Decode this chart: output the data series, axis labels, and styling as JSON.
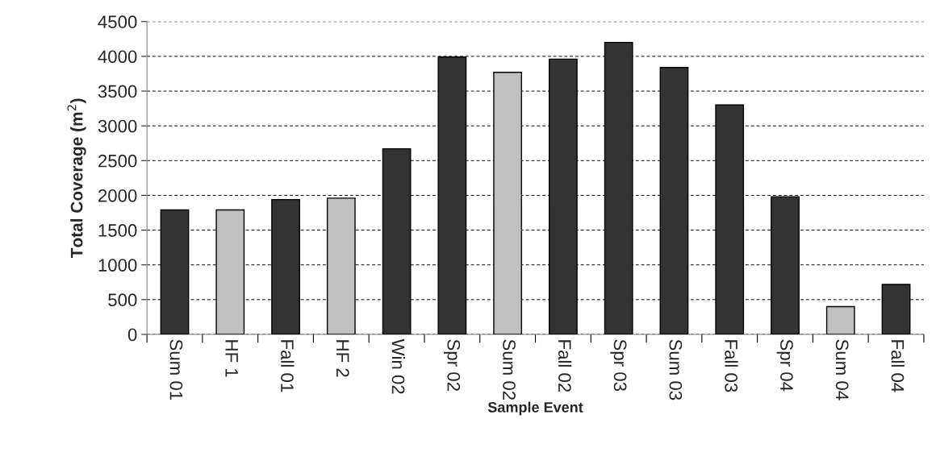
{
  "chart_data": {
    "type": "bar",
    "xlabel": "Sample Event",
    "ylabel": "Total Coverage (m$^{2}$)",
    "categories": [
      "Sum 01",
      "HF 1",
      "Fall 01",
      "HF 2",
      "Win 02",
      "Spr 02",
      "Sum 02",
      "Fall 02",
      "Spr 03",
      "Sum 03",
      "Fall 03",
      "Spr 04",
      "Sum 04",
      "Fall 04"
    ],
    "values": [
      1790,
      1790,
      1940,
      1960,
      2670,
      3990,
      3770,
      3960,
      4200,
      3840,
      3300,
      1980,
      400,
      720
    ],
    "colors": [
      "#333333",
      "#c0c0c0",
      "#333333",
      "#c0c0c0",
      "#333333",
      "#333333",
      "#c0c0c0",
      "#333333",
      "#333333",
      "#333333",
      "#333333",
      "#333333",
      "#c0c0c0",
      "#333333"
    ],
    "ylim": [
      0,
      4500
    ],
    "yticks": [
      0,
      500,
      1000,
      1500,
      2000,
      2500,
      3000,
      3500,
      4000,
      4500
    ],
    "grid": "y"
  }
}
